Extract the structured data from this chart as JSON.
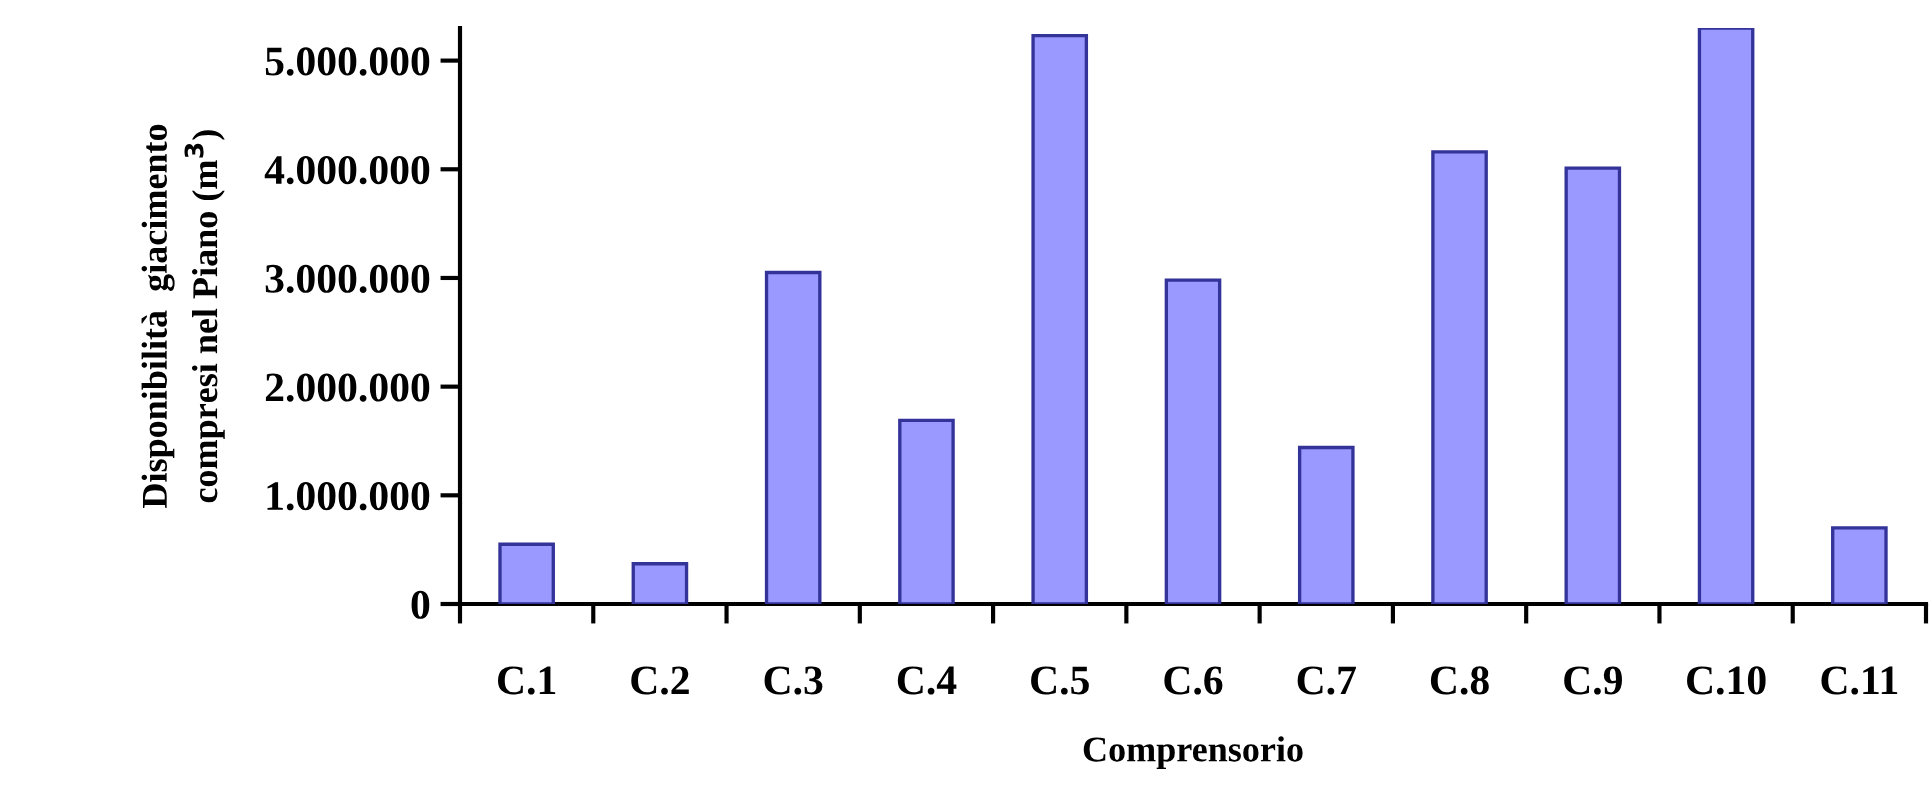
{
  "chart_data": {
    "type": "bar",
    "xlabel": "Comprensorio",
    "ylabel": "Disponibilità  giacimento\ncompresi nel Piano (m$^{3}$)",
    "categories": [
      "C.1",
      "C.2",
      "C.3",
      "C.4",
      "C.5",
      "C.6",
      "C.7",
      "C.8",
      "C.9",
      "C.10",
      "C.11"
    ],
    "values": [
      550000,
      370000,
      3050000,
      1690000,
      5230000,
      2980000,
      1440000,
      4160000,
      4010000,
      5300000,
      700000
    ],
    "color": "#9999ff",
    "ylim": [
      0,
      5300000
    ],
    "yticks": [
      {
        "value": 0,
        "label": "0"
      },
      {
        "value": 1000000,
        "label": "1.000.000"
      },
      {
        "value": 2000000,
        "label": "2.000.000"
      },
      {
        "value": 3000000,
        "label": "3.000.000"
      },
      {
        "value": 4000000,
        "label": "4.000.000"
      },
      {
        "value": 5000000,
        "label": "5.000.000"
      }
    ],
    "grid": false,
    "legend": false
  }
}
